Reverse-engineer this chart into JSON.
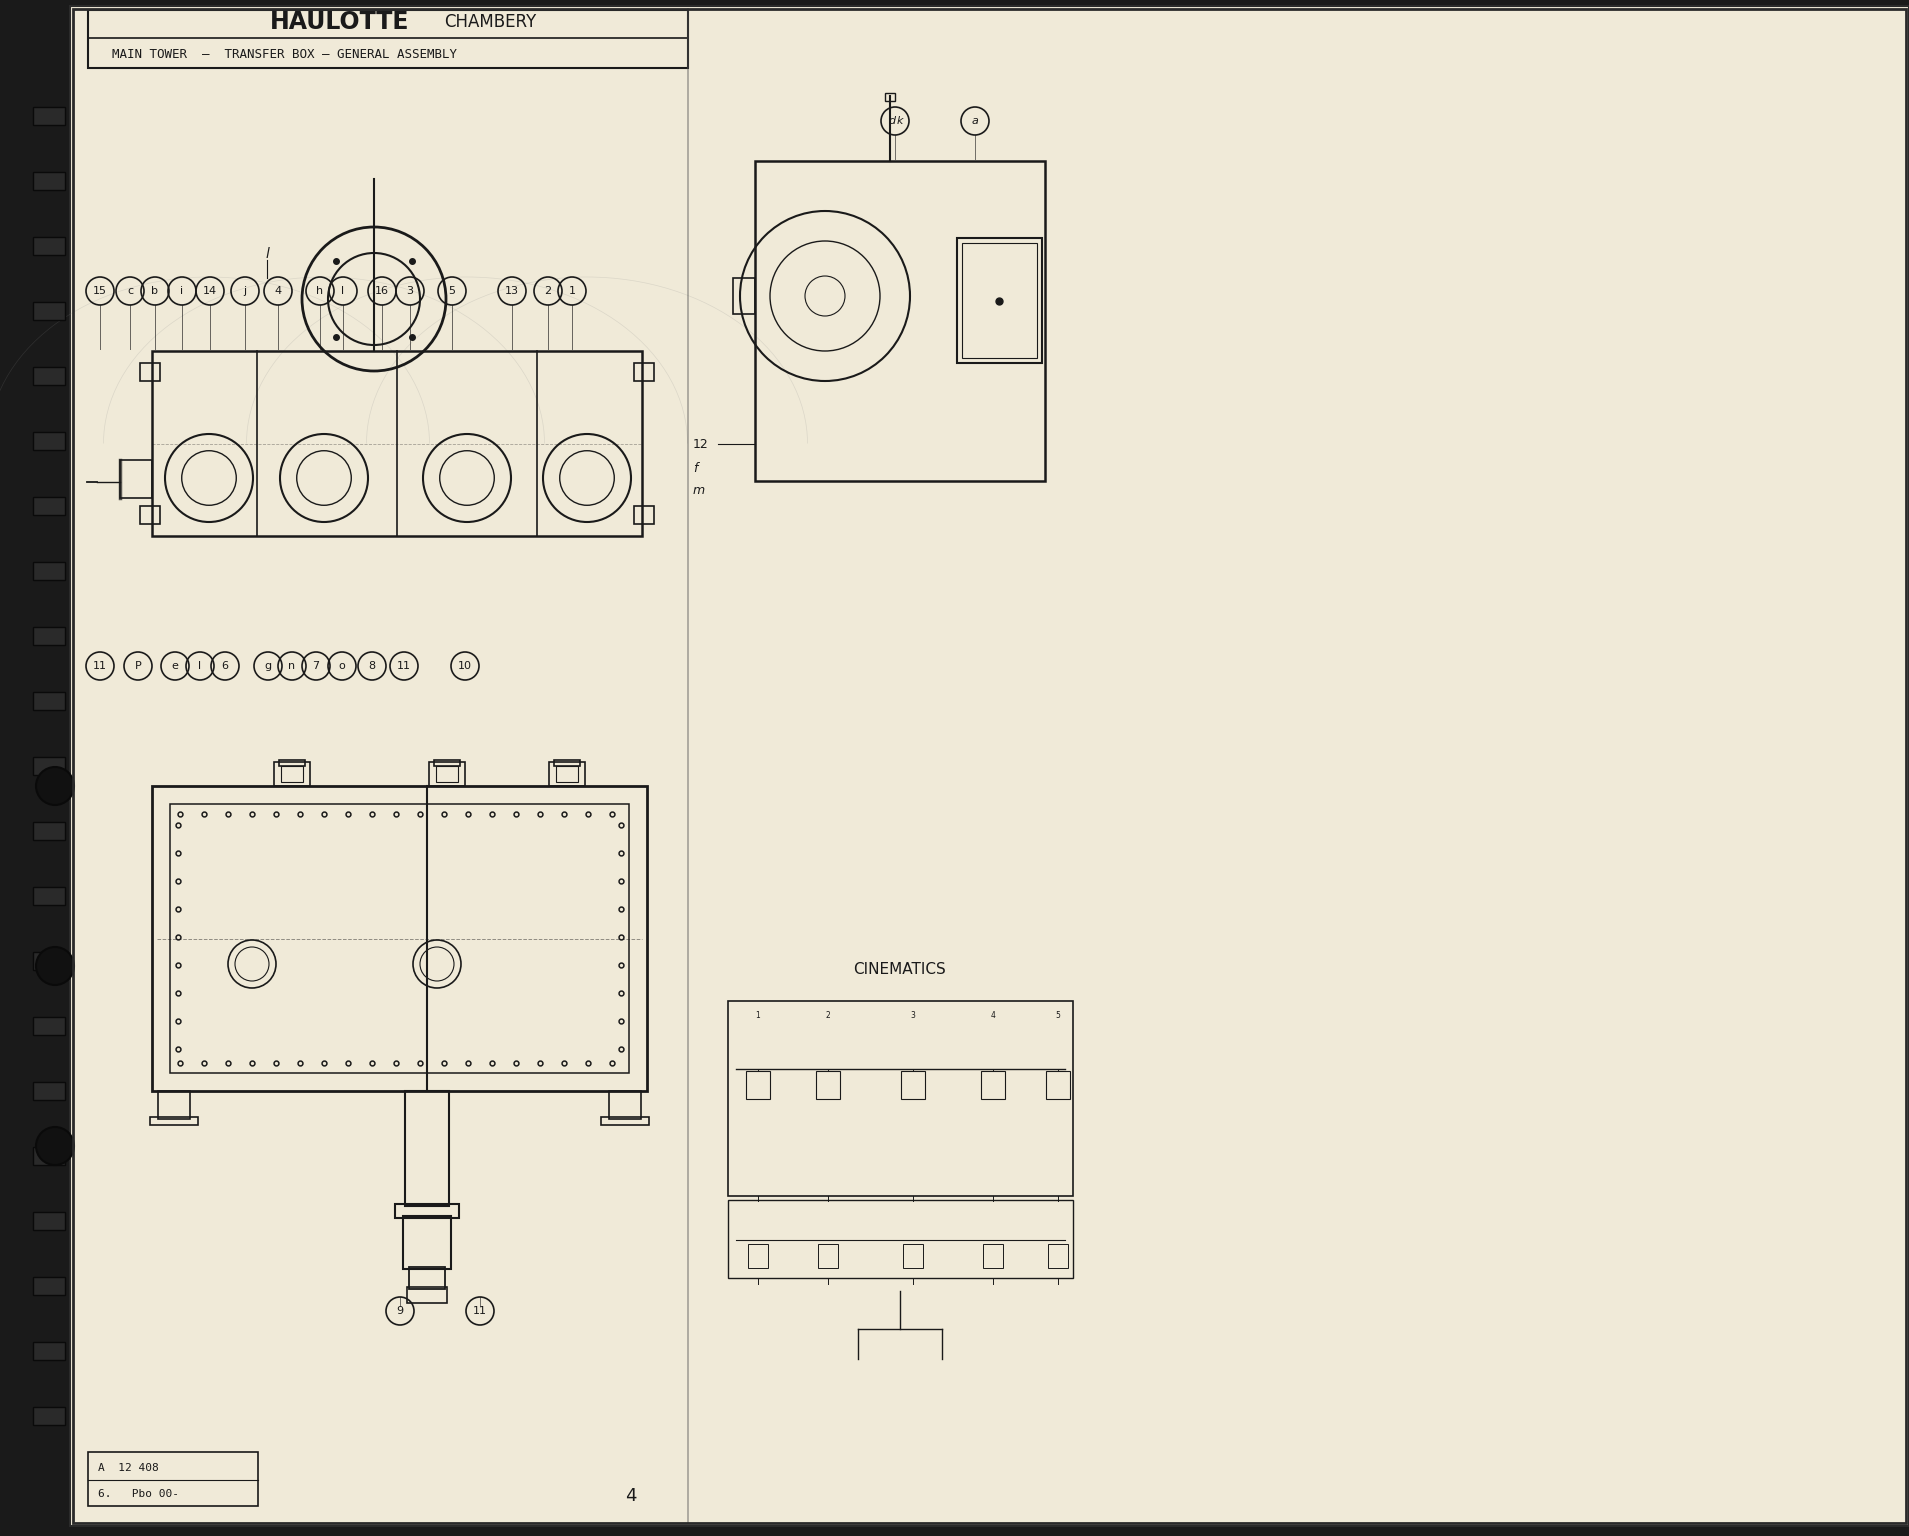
{
  "page_bg": "#f0ead8",
  "border_bg": "#1a1a1a",
  "line_color": "#1a1a1a",
  "title_main": "HAULOTTE",
  "title_sub": "CHAMBERY",
  "subtitle": "MAIN TOWER  —  TRANSFER BOX – GENERAL ASSEMBLY",
  "page_number": "4",
  "drawing_number": "A  12 408",
  "drawing_number2": "6.   Pbo 00-",
  "cinematics_label": "CINEMATICS",
  "top_callouts": [
    [
      100,
      1245,
      "15"
    ],
    [
      130,
      1245,
      "c"
    ],
    [
      155,
      1245,
      "b"
    ],
    [
      182,
      1245,
      "i"
    ],
    [
      210,
      1245,
      "14"
    ],
    [
      245,
      1245,
      "j"
    ],
    [
      278,
      1245,
      "4"
    ],
    [
      320,
      1245,
      "h"
    ],
    [
      343,
      1245,
      "l"
    ],
    [
      382,
      1245,
      "16"
    ],
    [
      410,
      1245,
      "3"
    ],
    [
      452,
      1245,
      "5"
    ],
    [
      512,
      1245,
      "13"
    ],
    [
      548,
      1245,
      "2"
    ],
    [
      572,
      1245,
      "1"
    ]
  ],
  "bot_callouts": [
    [
      100,
      870,
      "11"
    ],
    [
      138,
      870,
      "P"
    ],
    [
      175,
      870,
      "e"
    ],
    [
      200,
      870,
      "l"
    ],
    [
      225,
      870,
      "6"
    ],
    [
      268,
      870,
      "g"
    ],
    [
      292,
      870,
      "n"
    ],
    [
      316,
      870,
      "7"
    ],
    [
      342,
      870,
      "o"
    ],
    [
      372,
      870,
      "8"
    ],
    [
      404,
      870,
      "11"
    ],
    [
      465,
      870,
      "10"
    ]
  ],
  "bot_callouts2": [
    [
      400,
      225,
      "9"
    ],
    [
      480,
      225,
      "11"
    ]
  ],
  "side_callouts_dk": [
    895,
    1415,
    "d k"
  ],
  "side_callout_a": [
    975,
    1415,
    "a"
  ]
}
